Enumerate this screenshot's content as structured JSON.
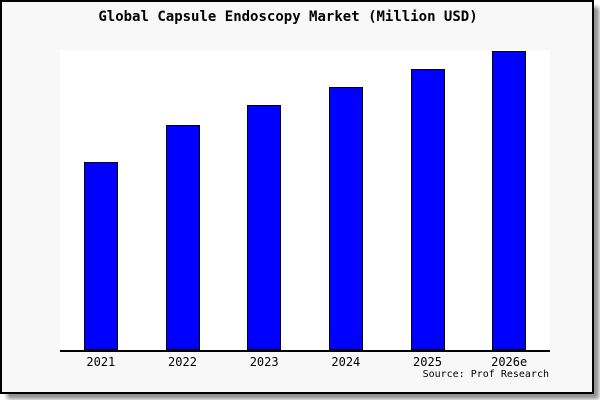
{
  "chart_data": {
    "type": "bar",
    "title": "Global Capsule Endoscopy Market (Million USD)",
    "categories": [
      "2021",
      "2022",
      "2023",
      "2024",
      "2025",
      "2026e"
    ],
    "values": [
      188,
      225,
      245,
      263,
      281,
      299
    ],
    "value_scale_note": "No y-axis, gridlines or data labels are shown in the image; values are relative bar heights measured in pixels against a 300px-tall plot area.",
    "xlabel": "",
    "ylabel": "",
    "ylim": [
      0,
      300
    ],
    "grid": false,
    "legend": "none",
    "bar_color": "#0000ff",
    "bar_border_color": "#000000"
  },
  "source_credit": "Source: Prof Research",
  "colors": {
    "bar_fill": "#0000ff",
    "bar_border": "#000000",
    "axis": "#000000",
    "plot_background": "#ffffff",
    "canvas_background": "#f8f8f8",
    "frame_border": "#000000",
    "text": "#000000"
  }
}
